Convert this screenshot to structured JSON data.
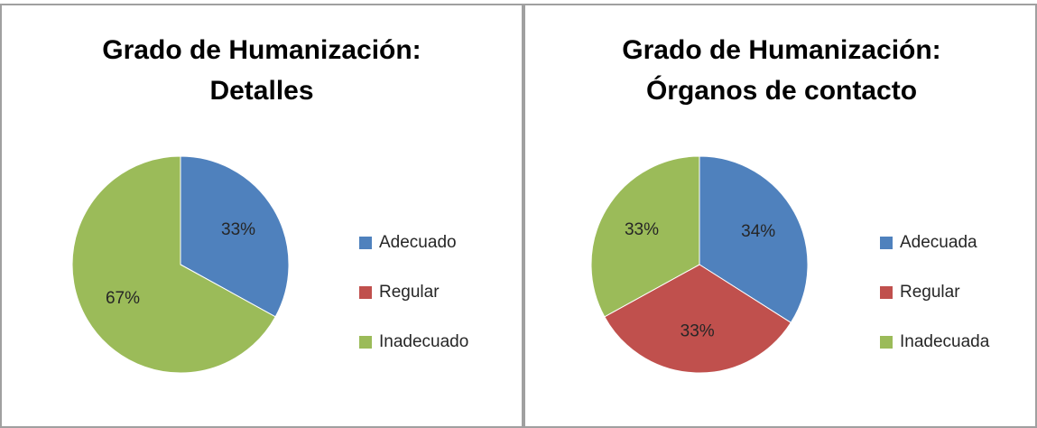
{
  "chart_data": [
    {
      "type": "pie",
      "title": "Grado de Humanización: Detalles",
      "categories": [
        "Adecuado",
        "Regular",
        "Inadecuado"
      ],
      "values": [
        33,
        0,
        67
      ],
      "value_labels": [
        "33%",
        null,
        "67%"
      ],
      "colors": [
        "#4f81bd",
        "#c0504d",
        "#9bbb59"
      ],
      "legend": "right"
    },
    {
      "type": "pie",
      "title": "Grado de Humanización: Órganos de contacto",
      "categories": [
        "Adecuada",
        "Regular",
        "Inadecuada"
      ],
      "values": [
        34,
        33,
        33
      ],
      "value_labels": [
        "34%",
        "33%",
        "33%"
      ],
      "colors": [
        "#4f81bd",
        "#c0504d",
        "#9bbb59"
      ],
      "legend": "right"
    }
  ]
}
